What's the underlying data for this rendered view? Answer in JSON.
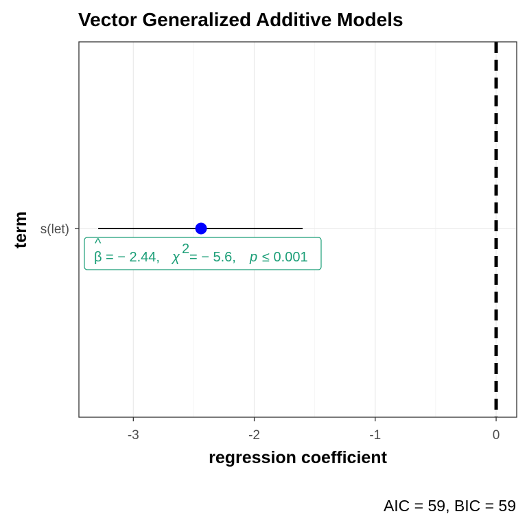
{
  "chart_data": {
    "type": "scatter",
    "title": "Vector Generalized Additive Models",
    "xlabel": "regression coefficient",
    "ylabel": "term",
    "xlim": [
      -3.45,
      0.17
    ],
    "x_ticks": [
      {
        "value": -3,
        "label": "-3"
      },
      {
        "value": -2,
        "label": "-2"
      },
      {
        "value": -1,
        "label": "-1"
      },
      {
        "value": 0,
        "label": "0"
      }
    ],
    "categories": [
      "s(let)"
    ],
    "points": [
      {
        "term": "s(let)",
        "estimate": -2.44,
        "conf_low": -3.29,
        "conf_high": -1.6,
        "label": {
          "beta_symbol": "β",
          "estimate_text": "= − 2.44,",
          "chi_symbol": "χ",
          "chi_exp": "2",
          "chi_text": "= − 5.6,",
          "p_symbol": "p",
          "p_text": "≤ 0.001"
        }
      }
    ],
    "reference_line": 0,
    "caption": "AIC = 59, BIC = 59",
    "grid": true,
    "colors": {
      "point": "#0000ff",
      "label": "#1b9e77",
      "line": "#000000",
      "grid": "#ebebeb",
      "panel_border": "#333333"
    }
  }
}
